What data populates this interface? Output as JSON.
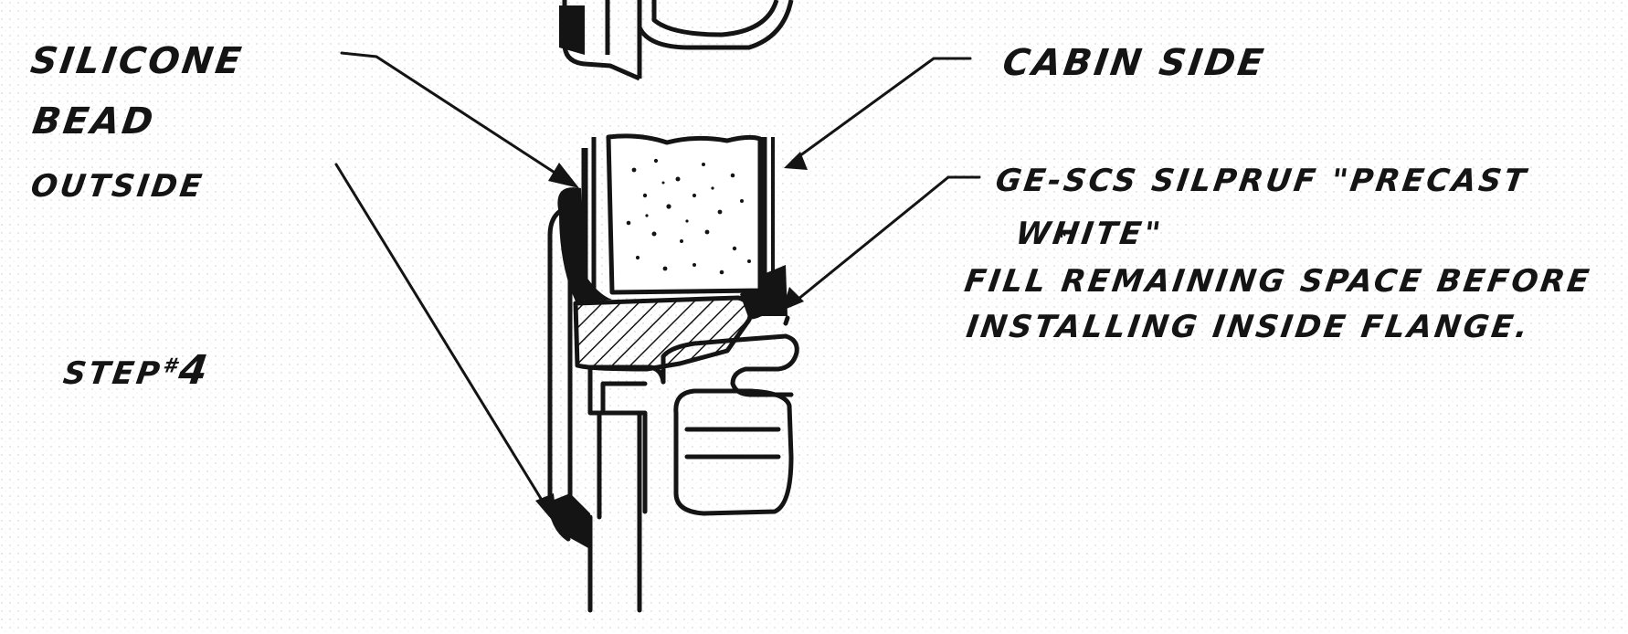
{
  "labels": {
    "silicone_line1": "SILICONE",
    "silicone_line2": "BEAD",
    "silicone_line3": "OUTSIDE",
    "step_text": "STEP",
    "step_mark": "#",
    "step_number": "4",
    "cabin_side": "CABIN SIDE",
    "sealant_line1": "GE-SCS SILPRUF \"PRECAST",
    "sealant_line2": "WHITE\"",
    "fill_line1": "FILL REMAINING SPACE BEFORE",
    "fill_line2": "INSTALLING INSIDE FLANGE."
  },
  "colors": {
    "ink": "#141414",
    "paper": "#ffffff",
    "stipple": "#9a9a9a"
  }
}
